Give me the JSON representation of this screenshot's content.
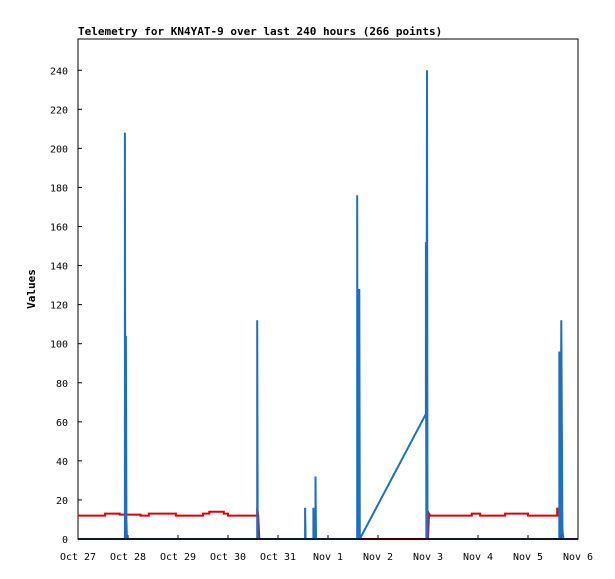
{
  "chart_data": {
    "type": "line",
    "title": "Telemetry for KN4YAT-9 over last 240 hours (266 points)",
    "xlabel": "",
    "ylabel": "Values",
    "grid": false,
    "legend": "none",
    "ylim": [
      0,
      256
    ],
    "yticks": [
      0,
      20,
      40,
      60,
      80,
      100,
      120,
      140,
      160,
      180,
      200,
      220,
      240
    ],
    "xticks": [
      "Oct 27",
      "Oct 28",
      "Oct 29",
      "Oct 30",
      "Oct 31",
      "Nov 1",
      "Nov 2",
      "Nov 3",
      "Nov 4",
      "Nov 5",
      "Nov 6"
    ],
    "series": [
      {
        "color": "#dd0000",
        "points": [
          [
            "Oct 27 00:00",
            12
          ],
          [
            "Oct 27 13:00",
            12
          ],
          [
            "Oct 27 13:00",
            13
          ],
          [
            "Oct 27 20:00",
            13
          ],
          [
            "Oct 27 20:00",
            12.5
          ],
          [
            "Oct 28 06:00",
            12.5
          ],
          [
            "Oct 28 06:00",
            12
          ],
          [
            "Oct 28 10:00",
            12
          ],
          [
            "Oct 28 10:00",
            13
          ],
          [
            "Oct 28 23:00",
            13
          ],
          [
            "Oct 28 23:00",
            12
          ],
          [
            "Oct 29 12:00",
            12
          ],
          [
            "Oct 29 12:00",
            13
          ],
          [
            "Oct 29 15:00",
            13
          ],
          [
            "Oct 29 15:00",
            14
          ],
          [
            "Oct 29 22:00",
            14
          ],
          [
            "Oct 29 22:00",
            13
          ],
          [
            "Oct 30 00:00",
            13
          ],
          [
            "Oct 30 00:00",
            12
          ],
          [
            "Oct 30 14:00",
            12
          ],
          [
            "Oct 30 14:00",
            16
          ],
          [
            "Oct 30 14:30",
            12
          ],
          [
            "Oct 30 15:00",
            0
          ],
          [
            "Nov 3 00:00",
            0
          ],
          [
            "Nov 3 00:30",
            13
          ],
          [
            "Nov 3 01:00",
            12
          ],
          [
            "Nov 3 21:00",
            12
          ],
          [
            "Nov 3 21:00",
            13
          ],
          [
            "Nov 4 01:00",
            13
          ],
          [
            "Nov 4 01:00",
            12
          ],
          [
            "Nov 4 13:00",
            12
          ],
          [
            "Nov 4 13:00",
            13
          ],
          [
            "Nov 5 00:00",
            13
          ],
          [
            "Nov 5 00:00",
            12
          ],
          [
            "Nov 5 14:00",
            12
          ],
          [
            "Nov 5 14:00",
            16
          ],
          [
            "Nov 5 15:00",
            12
          ],
          [
            "Nov 5 16:00",
            0
          ],
          [
            "Nov 6 00:00",
            0
          ]
        ]
      },
      {
        "color": "#1f6fbf",
        "points": [
          [
            "Oct 27 00:00",
            0
          ],
          [
            "Oct 27 22:30",
            0
          ],
          [
            "Oct 27 22:30",
            208
          ],
          [
            "Oct 27 22:45",
            0
          ],
          [
            "Oct 27 23:00",
            104
          ],
          [
            "Oct 27 23:15",
            10
          ],
          [
            "Oct 27 23:30",
            0
          ],
          [
            "Oct 30 14:00",
            0
          ],
          [
            "Oct 30 14:00",
            112
          ],
          [
            "Oct 30 14:15",
            0
          ],
          [
            "Oct 31 13:00",
            0
          ],
          [
            "Oct 31 13:00",
            16
          ],
          [
            "Oct 31 13:15",
            0
          ],
          [
            "Oct 31 17:00",
            0
          ],
          [
            "Oct 31 17:00",
            16
          ],
          [
            "Oct 31 17:15",
            0
          ],
          [
            "Oct 31 18:00",
            0
          ],
          [
            "Oct 31 18:00",
            32
          ],
          [
            "Oct 31 18:15",
            0
          ],
          [
            "Nov 1 14:00",
            0
          ],
          [
            "Nov 1 14:00",
            176
          ],
          [
            "Nov 1 14:15",
            0
          ],
          [
            "Nov 1 15:00",
            128
          ],
          [
            "Nov 1 15:15",
            0
          ],
          [
            "Nov 2 23:00",
            64
          ],
          [
            "Nov 2 23:00",
            152
          ],
          [
            "Nov 2 23:15",
            0
          ],
          [
            "Nov 2 23:30",
            240
          ],
          [
            "Nov 2 23:45",
            0
          ],
          [
            "Nov 5 15:00",
            0
          ],
          [
            "Nov 5 15:00",
            96
          ],
          [
            "Nov 5 15:30",
            0
          ],
          [
            "Nov 5 16:00",
            112
          ],
          [
            "Nov 5 16:30",
            5
          ],
          [
            "Nov 5 17:00",
            0
          ],
          [
            "Nov 6 00:00",
            0
          ]
        ]
      }
    ]
  }
}
